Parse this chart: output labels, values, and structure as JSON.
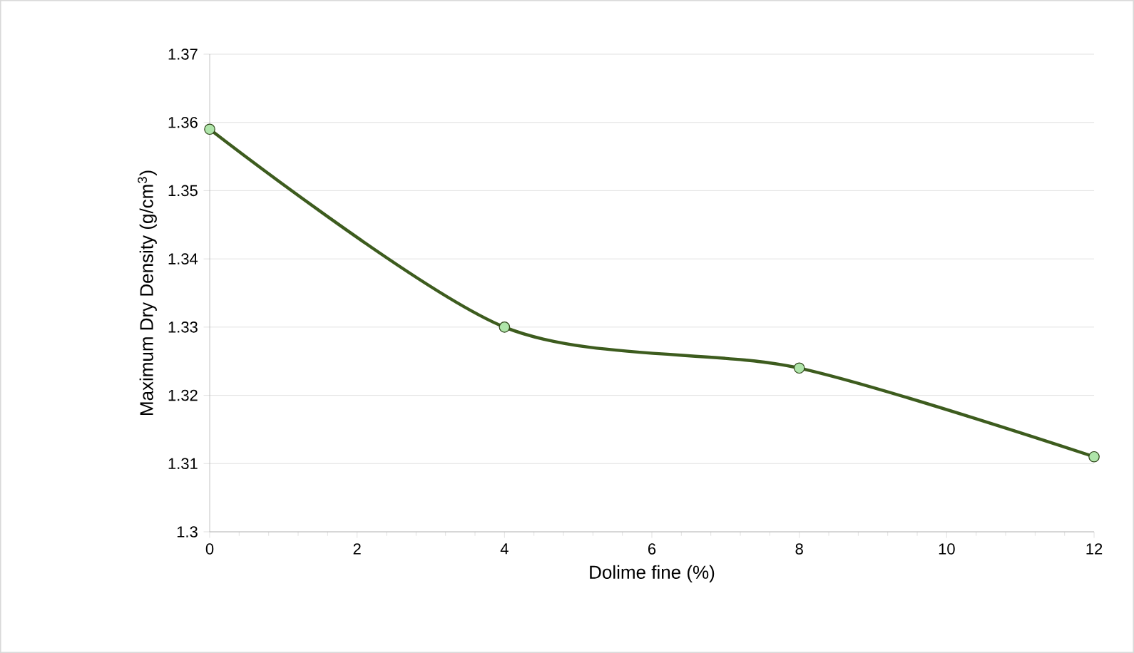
{
  "chart_data": {
    "type": "line",
    "xlabel": "Dolime fine (%)",
    "ylabel": "Maximum Dry Density (g/cm$^{3}$)",
    "x": [
      0,
      4,
      8,
      12
    ],
    "series": [
      {
        "color": "#3d5c1e",
        "values": [
          1.359,
          1.33,
          1.324,
          1.311
        ]
      }
    ],
    "xlim": [
      0,
      12
    ],
    "xticks": [
      0,
      2,
      4,
      6,
      8,
      10,
      12
    ],
    "ylim": [
      1.3,
      1.37
    ],
    "yticks": [
      1.3,
      1.31,
      1.32,
      1.33,
      1.34,
      1.35,
      1.36,
      1.37
    ],
    "grid": "y",
    "marker": "circle",
    "line_style": "solid"
  }
}
